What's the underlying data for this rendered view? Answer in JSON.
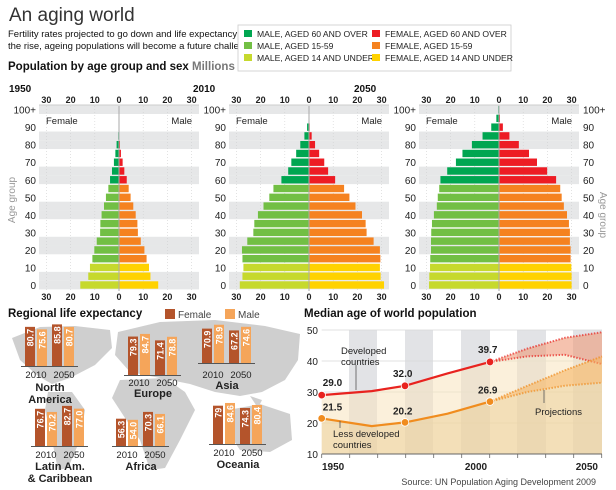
{
  "header": {
    "title": "An aging world",
    "subtitle_lines": [
      "Fertility rates projected to go down and life expectancy on",
      "the rise, ageing populations will become a future challenge"
    ]
  },
  "legend": {
    "items": [
      {
        "label": "MALE, AGED 60 AND OVER",
        "color": "#00a651"
      },
      {
        "label": "MALE, AGED 15-59",
        "color": "#72bf44"
      },
      {
        "label": "MALE, AGED 14 AND UNDER",
        "color": "#c6d92d"
      },
      {
        "label": "FEMALE, AGED 60 AND OVER",
        "color": "#ed1c24"
      },
      {
        "label": "FEMALE, AGED 15-59",
        "color": "#f58220"
      },
      {
        "label": "FEMALE, AGED 14 AND UNDER",
        "color": "#ffd200"
      }
    ]
  },
  "pyramids": {
    "title": "Population by age group and sex",
    "unit": "Millions",
    "female_label": "Female",
    "male_label": "Male",
    "axis_label": "Age group",
    "x_ticks": [
      "30",
      "20",
      "10",
      "0",
      "10",
      "20",
      "30"
    ],
    "age_ticks": [
      "0",
      "10",
      "20",
      "30",
      "40",
      "50",
      "60",
      "70",
      "80",
      "90",
      "100+"
    ]
  },
  "chart_data": [
    {
      "type": "bar",
      "orientation": "horizontal-pyramid",
      "title": "1950",
      "categories": [
        0,
        5,
        10,
        15,
        20,
        25,
        30,
        35,
        40,
        45,
        50,
        55,
        60,
        65,
        70,
        75,
        80,
        85,
        90,
        95,
        100
      ],
      "xlim": [
        -30,
        30
      ],
      "ylabel": "Age group",
      "series": [
        {
          "name": "Female",
          "values": [
            16,
            12.7,
            12,
            11,
            10.2,
            9.2,
            7.8,
            7.7,
            7.2,
            6.2,
            5.4,
            4.4,
            3.7,
            2.9,
            2.1,
            1.5,
            1,
            0.3,
            0.1,
            0,
            0
          ]
        },
        {
          "name": "Male",
          "values": [
            16.2,
            13,
            12.4,
            11.4,
            10.5,
            9,
            7.8,
            7.6,
            6.9,
            5.9,
            4.8,
            4,
            3.2,
            2.2,
            1.5,
            0.8,
            0.4,
            0.2,
            0,
            0,
            0
          ]
        }
      ]
    },
    {
      "type": "bar",
      "orientation": "horizontal-pyramid",
      "title": "2010",
      "categories": [
        0,
        5,
        10,
        15,
        20,
        25,
        30,
        35,
        40,
        45,
        50,
        55,
        60,
        65,
        70,
        75,
        80,
        85,
        90,
        95,
        100
      ],
      "xlim": [
        -30,
        30
      ],
      "ylabel": "Age group",
      "series": [
        {
          "name": "Female",
          "values": [
            28.6,
            27.5,
            27.1,
            27.5,
            27.7,
            25.5,
            23,
            22.6,
            21.1,
            18.8,
            16.4,
            14.7,
            11.4,
            8.6,
            7.3,
            5.3,
            3.6,
            1.9,
            0.8,
            0.1,
            0
          ]
        },
        {
          "name": "Male",
          "values": [
            31,
            29.6,
            29.3,
            29.5,
            29.3,
            26.7,
            23.8,
            23.4,
            21.9,
            19.2,
            16.7,
            14.5,
            10.8,
            7.9,
            6.3,
            4.2,
            2.5,
            1.1,
            0.3,
            0.2,
            0
          ]
        }
      ]
    },
    {
      "type": "bar",
      "orientation": "horizontal-pyramid",
      "title": "2050",
      "categories": [
        0,
        5,
        10,
        15,
        20,
        25,
        30,
        35,
        40,
        45,
        50,
        55,
        60,
        65,
        70,
        75,
        80,
        85,
        90,
        95,
        100
      ],
      "xlim": [
        -30,
        30
      ],
      "ylabel": "Age group",
      "series": [
        {
          "name": "Female",
          "values": [
            28.9,
            28.8,
            28.5,
            28.4,
            28.1,
            28.1,
            28,
            27.7,
            26.9,
            25.7,
            25.3,
            24.7,
            24.2,
            21.4,
            17.8,
            15.1,
            11.2,
            6.8,
            3.2,
            1.1,
            0.3
          ]
        },
        {
          "name": "Male",
          "values": [
            30,
            30,
            29.9,
            29.6,
            29.6,
            29.3,
            29.3,
            28.9,
            28.1,
            26.8,
            25.9,
            25.3,
            23.6,
            19.9,
            15.7,
            12.4,
            8.2,
            4.3,
            1.6,
            0.4,
            0.1
          ]
        }
      ]
    },
    {
      "type": "bar",
      "title": "Regional life expectancy",
      "legend": [
        "Female",
        "Male"
      ],
      "colors": {
        "Female": "#b4542b",
        "Male": "#f5a55a"
      },
      "years": [
        "2010",
        "2050"
      ],
      "regions": [
        {
          "name_lines": [
            "North",
            "America"
          ],
          "female": [
            80.7,
            85.8
          ],
          "male": [
            75.6,
            80.7
          ],
          "labels": {
            "female": [
              "80.7",
              "85.8"
            ],
            "male": [
              "75.6",
              "80.7"
            ]
          }
        },
        {
          "name_lines": [
            "Europe"
          ],
          "female": [
            79.3,
            71.4
          ],
          "male": [
            84.7,
            78.8
          ],
          "labels": {
            "female": [
              "79.3",
              "71.4"
            ],
            "male": [
              "84.7",
              "78.8"
            ]
          }
        },
        {
          "name_lines": [
            "Asia"
          ],
          "female": [
            70.9,
            67.2
          ],
          "male": [
            78.9,
            74.6
          ],
          "labels": {
            "female": [
              "70.9",
              "67.2"
            ],
            "male": [
              "78.9",
              "74.6"
            ]
          }
        },
        {
          "name_lines": [
            "Latin Am.",
            "& Caribbean"
          ],
          "female": [
            76.7,
            82.7
          ],
          "male": [
            70.2,
            77.0
          ],
          "labels": {
            "female": [
              "76.7",
              "82.7"
            ],
            "male": [
              "70.2",
              "77.0"
            ]
          }
        },
        {
          "name_lines": [
            "Africa"
          ],
          "female": [
            56.3,
            70.3
          ],
          "male": [
            54.0,
            66.1
          ],
          "labels": {
            "female": [
              "56.3",
              "70.3"
            ],
            "male": [
              "54.0",
              "66.1"
            ]
          }
        },
        {
          "name_lines": [
            "Oceania"
          ],
          "female": [
            79,
            74.3
          ],
          "male": [
            84.6,
            80.4
          ],
          "labels": {
            "female": [
              "79",
              "74.3"
            ],
            "male": [
              "84.6",
              "80.4"
            ]
          }
        }
      ]
    },
    {
      "type": "line",
      "title": "Median age of world population",
      "ylim": [
        10,
        50
      ],
      "y_ticks": [
        "50",
        "40",
        "30",
        "20",
        "10"
      ],
      "x_ticks": [
        "1950",
        "2000",
        "2050"
      ],
      "series": [
        {
          "name": "Developed countries",
          "color": "#e8231f",
          "points": [
            [
              1950,
              29.0
            ],
            [
              1965,
              30.3
            ],
            [
              1975,
              32.0
            ],
            [
              1990,
              36
            ],
            [
              2005,
              39.7
            ]
          ],
          "labeled": [
            {
              "x": 1950,
              "y": 29.0,
              "label": "29.0"
            },
            {
              "x": 1975,
              "y": 32.0,
              "label": "32.0"
            },
            {
              "x": 2005,
              "y": 39.7,
              "label": "39.7"
            }
          ],
          "projection_high": [
            [
              2005,
              39.7
            ],
            [
              2020,
              44
            ],
            [
              2035,
              47.5
            ],
            [
              2050,
              49.3
            ]
          ],
          "projection_low": [
            [
              2005,
              39.7
            ],
            [
              2020,
              41.5
            ],
            [
              2035,
              42
            ],
            [
              2050,
              39
            ]
          ]
        },
        {
          "name": "Less developed countries",
          "color": "#f08c1e",
          "points": [
            [
              1950,
              21.5
            ],
            [
              1965,
              19
            ],
            [
              1975,
              20.2
            ],
            [
              1990,
              23
            ],
            [
              2005,
              26.9
            ]
          ],
          "labeled": [
            {
              "x": 1950,
              "y": 21.5,
              "label": "21.5"
            },
            {
              "x": 1975,
              "y": 20.2,
              "label": "20.2"
            },
            {
              "x": 2005,
              "y": 26.9,
              "label": "26.9"
            }
          ],
          "projection_high": [
            [
              2005,
              26.9
            ],
            [
              2020,
              32
            ],
            [
              2035,
              37
            ],
            [
              2050,
              41.5
            ]
          ],
          "projection_low": [
            [
              2005,
              26.9
            ],
            [
              2020,
              30
            ],
            [
              2035,
              32
            ],
            [
              2050,
              33
            ]
          ]
        }
      ],
      "annotations": {
        "developed": [
          "Developed",
          "countries"
        ],
        "less_developed": [
          "Less developed",
          "countries"
        ],
        "projections": "Projections"
      }
    }
  ],
  "source": "Source: UN Population Aging Development 2009"
}
